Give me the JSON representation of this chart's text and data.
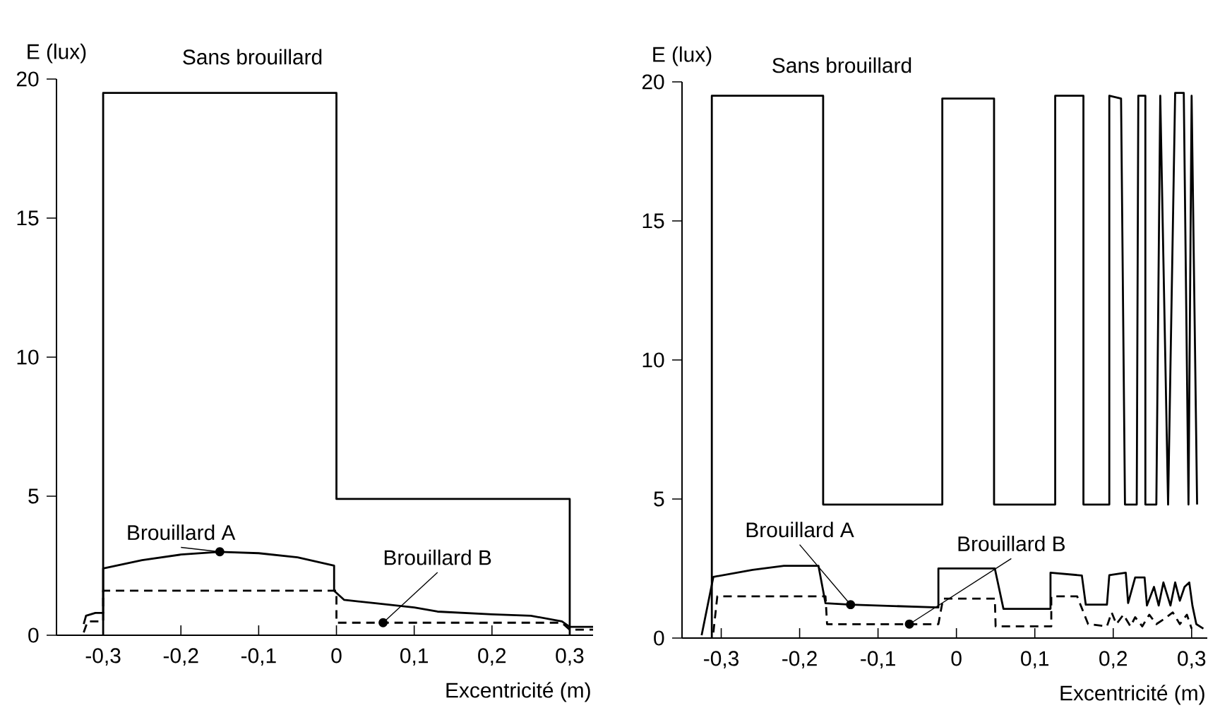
{
  "chart_data": [
    {
      "type": "line",
      "xlabel": "Excentricité (m)",
      "ylabel": "E (lux)",
      "xlim": [
        -0.36,
        0.33
      ],
      "ylim": [
        0,
        20
      ],
      "xticks": [
        {
          "value": -0.3,
          "label": "-0,3"
        },
        {
          "value": -0.2,
          "label": "-0,2"
        },
        {
          "value": -0.1,
          "label": "-0,1"
        },
        {
          "value": 0,
          "label": "0"
        },
        {
          "value": 0.1,
          "label": "0,1"
        },
        {
          "value": 0.2,
          "label": "0,2"
        },
        {
          "value": 0.3,
          "label": "0,3"
        }
      ],
      "yticks": [
        0,
        5,
        10,
        15,
        20
      ],
      "series": [
        {
          "name": "Sans brouillard",
          "color": "#000000",
          "line_style": "solid",
          "x": [
            -0.3,
            -0.3,
            0,
            0,
            0.3,
            0.3
          ],
          "values": [
            0,
            19.5,
            19.5,
            4.9,
            4.9,
            0
          ]
        },
        {
          "name": "Brouillard A",
          "color": "#000000",
          "line_style": "solid",
          "x": [
            -0.325,
            -0.322,
            -0.31,
            -0.3,
            -0.3,
            -0.25,
            -0.2,
            -0.15,
            -0.1,
            -0.05,
            -0.003,
            -0.003,
            0.01,
            0.05,
            0.1,
            0.13,
            0.2,
            0.25,
            0.29,
            0.3,
            0.33
          ],
          "values": [
            0.4,
            0.7,
            0.8,
            0.8,
            2.4,
            2.7,
            2.9,
            3.0,
            2.95,
            2.8,
            2.5,
            1.6,
            1.27,
            1.15,
            1.0,
            0.85,
            0.75,
            0.7,
            0.5,
            0.3,
            0.3
          ]
        },
        {
          "name": "Brouillard B",
          "color": "#000000",
          "line_style": "dashed",
          "x": [
            -0.325,
            -0.32,
            -0.3,
            -0.3,
            0,
            0,
            0.06,
            0.29,
            0.3,
            0.33
          ],
          "values": [
            0.1,
            0.5,
            0.5,
            1.6,
            1.6,
            0.45,
            0.45,
            0.45,
            0.2,
            0.2
          ]
        }
      ]
    },
    {
      "type": "line",
      "xlabel": "Excentricité (m)",
      "ylabel": "E (lux)",
      "xlim": [
        -0.35,
        0.32
      ],
      "ylim": [
        0,
        20
      ],
      "xticks": [
        {
          "value": -0.3,
          "label": "-0,3"
        },
        {
          "value": -0.2,
          "label": "-0,2"
        },
        {
          "value": -0.1,
          "label": "-0,1"
        },
        {
          "value": 0,
          "label": "0"
        },
        {
          "value": 0.1,
          "label": "0,1"
        },
        {
          "value": 0.2,
          "label": "0,2"
        },
        {
          "value": 0.3,
          "label": "0,3"
        }
      ],
      "yticks": [
        0,
        5,
        10,
        15,
        20
      ],
      "series": [
        {
          "name": "Sans brouillard",
          "color": "#000000",
          "line_style": "solid",
          "x": [
            -0.312,
            -0.312,
            -0.17,
            -0.17,
            -0.018,
            -0.018,
            0.048,
            0.048,
            0.126,
            0.126,
            0.162,
            0.162,
            0.195,
            0.195,
            0.21,
            0.215,
            0.23,
            0.232,
            0.241,
            0.241,
            0.255,
            0.26,
            0.27,
            0.279,
            0.29,
            0.296,
            0.3,
            0.307
          ],
          "values": [
            0,
            19.5,
            19.5,
            4.8,
            4.8,
            19.4,
            19.4,
            4.8,
            4.8,
            19.5,
            19.5,
            4.8,
            4.8,
            19.5,
            19.4,
            4.8,
            4.8,
            19.5,
            19.5,
            4.8,
            4.8,
            19.5,
            4.8,
            19.6,
            19.6,
            4.8,
            19.5,
            4.8
          ]
        },
        {
          "name": "Brouillard A",
          "color": "#000000",
          "line_style": "solid",
          "x": [
            -0.325,
            -0.31,
            -0.26,
            -0.22,
            -0.176,
            -0.167,
            -0.135,
            -0.023,
            -0.023,
            0.049,
            0.06,
            0.12,
            0.12,
            0.16,
            0.165,
            0.192,
            0.195,
            0.216,
            0.219,
            0.228,
            0.24,
            0.243,
            0.252,
            0.258,
            0.264,
            0.273,
            0.279,
            0.285,
            0.291,
            0.297,
            0.301,
            0.306,
            0.315
          ],
          "values": [
            0.1,
            2.2,
            2.45,
            2.6,
            2.6,
            1.25,
            1.2,
            1.1,
            2.5,
            2.5,
            1.05,
            1.05,
            2.35,
            2.25,
            1.2,
            1.2,
            2.26,
            2.35,
            1.26,
            2.18,
            2.18,
            1.17,
            1.84,
            1.17,
            2.0,
            1.17,
            2.0,
            1.34,
            1.84,
            2.0,
            1.17,
            0.5,
            0.34
          ]
        },
        {
          "name": "Brouillard B",
          "color": "#000000",
          "line_style": "dashed",
          "x": [
            -0.31,
            -0.305,
            -0.167,
            -0.165,
            -0.06,
            -0.023,
            -0.017,
            0.049,
            0.05,
            0.121,
            0.121,
            0.154,
            0.168,
            0.192,
            0.198,
            0.204,
            0.213,
            0.222,
            0.228,
            0.237,
            0.246,
            0.255,
            0.264,
            0.276,
            0.285,
            0.294,
            0.3
          ],
          "values": [
            0.2,
            1.5,
            1.5,
            0.5,
            0.5,
            0.5,
            1.42,
            1.42,
            0.42,
            0.42,
            1.5,
            1.5,
            0.5,
            0.42,
            0.92,
            0.5,
            0.84,
            0.42,
            0.75,
            0.42,
            0.84,
            0.5,
            0.67,
            0.92,
            0.5,
            0.84,
            0.34
          ]
        }
      ]
    }
  ]
}
